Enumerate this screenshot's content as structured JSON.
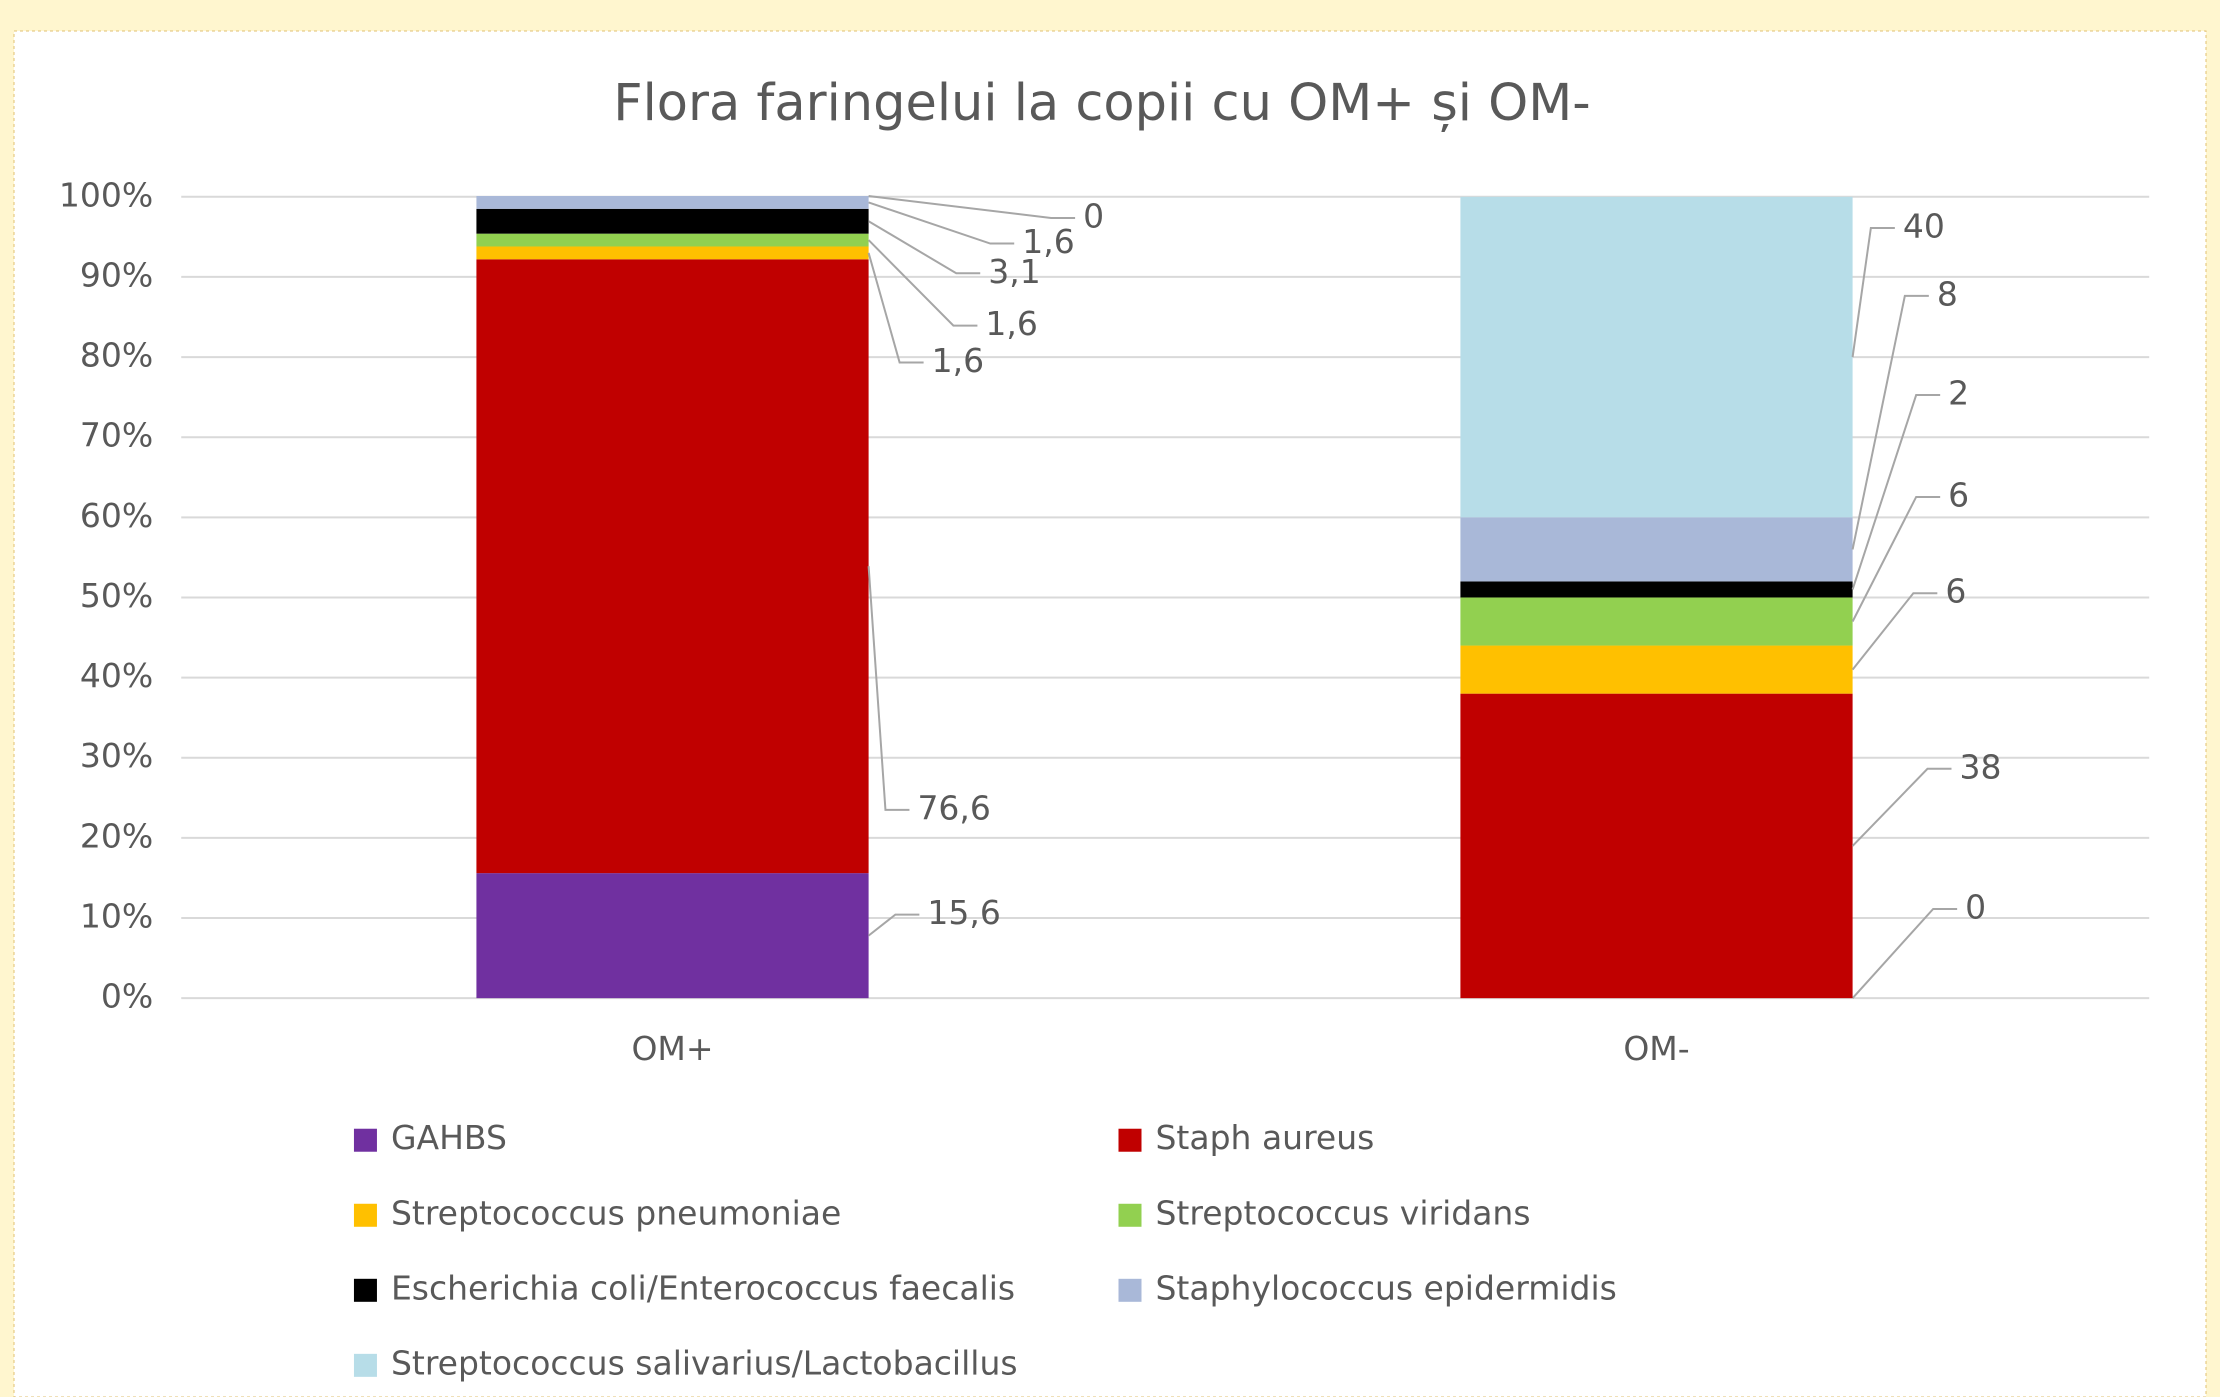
{
  "chart_data": {
    "type": "bar",
    "stacked": true,
    "title": "Flora faringelui la copii cu OM+ și OM-",
    "categories": [
      "OM+",
      "OM-"
    ],
    "series": [
      {
        "name": "GAHBS",
        "color": "#7030a0",
        "values": [
          15.6,
          0
        ],
        "value_labels": [
          "15,6",
          "0"
        ]
      },
      {
        "name": "Staph aureus",
        "color": "#c00000",
        "values": [
          76.6,
          38
        ],
        "value_labels": [
          "76,6",
          "38"
        ]
      },
      {
        "name": "Streptococcus pneumoniae",
        "color": "#ffc000",
        "values": [
          1.6,
          6
        ],
        "value_labels": [
          "1,6",
          "6"
        ]
      },
      {
        "name": "Streptococcus viridans",
        "color": "#92d050",
        "values": [
          1.6,
          6
        ],
        "value_labels": [
          "1,6",
          "6"
        ]
      },
      {
        "name": "Escherichia coli/Enterococcus faecalis",
        "color": "#000000",
        "values": [
          3.1,
          2
        ],
        "value_labels": [
          "3,1",
          "2"
        ]
      },
      {
        "name": "Staphylococcus epidermidis",
        "color": "#a9b8d8",
        "values": [
          1.6,
          8
        ],
        "value_labels": [
          "1,6",
          "8"
        ]
      },
      {
        "name": "Streptococcus salivarius/Lactobacillus",
        "color": "#b7dde8",
        "values": [
          0,
          40
        ],
        "value_labels": [
          "0",
          "40"
        ]
      }
    ],
    "ylim": [
      0,
      100
    ],
    "yticks": [
      {
        "value": 0,
        "label": "0%"
      },
      {
        "value": 10,
        "label": "10%"
      },
      {
        "value": 20,
        "label": "20%"
      },
      {
        "value": 30,
        "label": "30%"
      },
      {
        "value": 40,
        "label": "40%"
      },
      {
        "value": 50,
        "label": "50%"
      },
      {
        "value": 60,
        "label": "60%"
      },
      {
        "value": 70,
        "label": "70%"
      },
      {
        "value": 80,
        "label": "80%"
      },
      {
        "value": 90,
        "label": "90%"
      },
      {
        "value": 100,
        "label": "100%"
      }
    ],
    "grid": true,
    "legend": "bottom"
  }
}
